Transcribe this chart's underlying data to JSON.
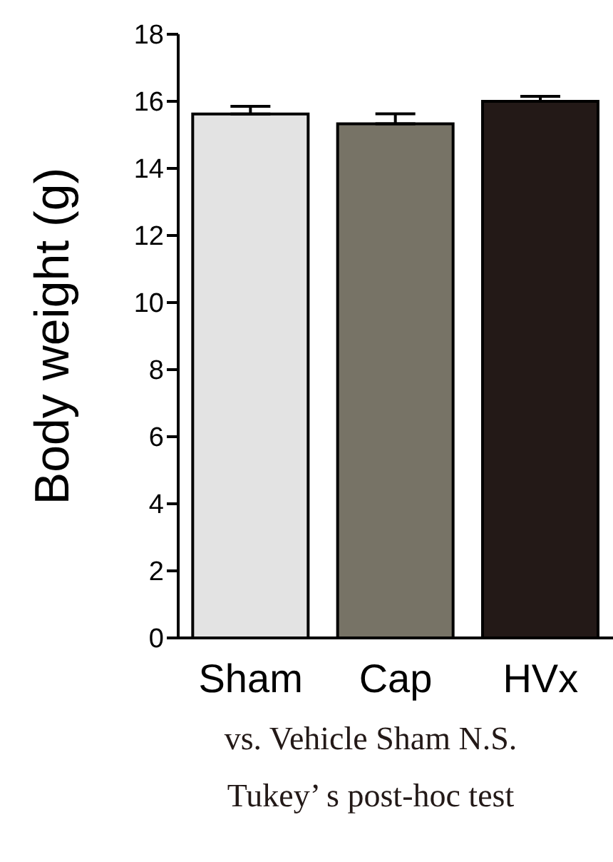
{
  "chart_data": {
    "type": "bar",
    "ylabel": "Body weight (g)",
    "categories": [
      "Sham",
      "Cap",
      "HVx"
    ],
    "values": [
      15.62,
      15.33,
      16.0
    ],
    "colors": [
      "#e3e3e3",
      "#777366",
      "#231917"
    ],
    "errors": [
      [
        15.62,
        15.85
      ],
      [
        15.33,
        15.63
      ],
      [
        16.0,
        16.15
      ]
    ],
    "ylim": [
      0,
      18
    ],
    "yticks": [
      0,
      2,
      4,
      6,
      8,
      10,
      12,
      14,
      16,
      18
    ],
    "grid": false,
    "annotations": [
      "vs. Vehicle Sham  N.S.",
      "Tukey’ s post-hoc test"
    ]
  }
}
